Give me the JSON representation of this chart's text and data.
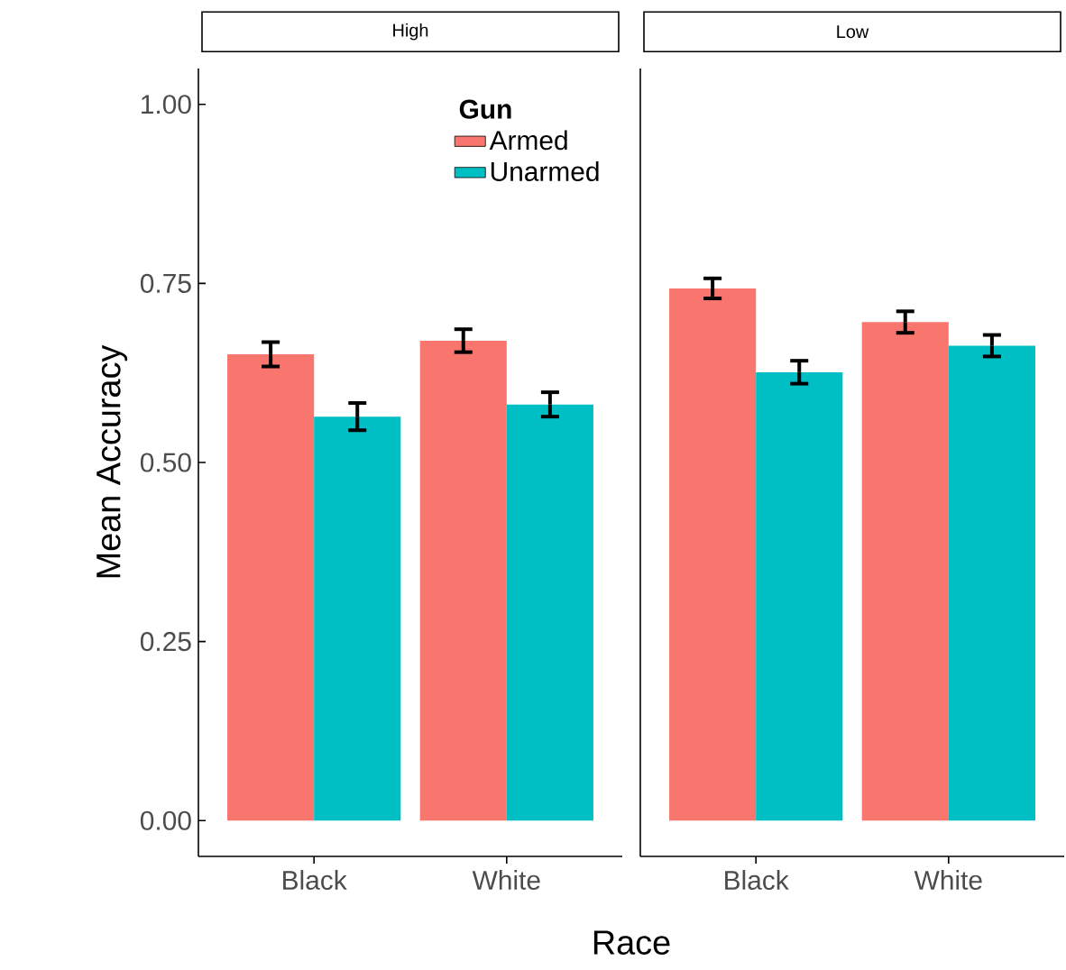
{
  "chart_data": [
    {
      "type": "bar",
      "title": "High",
      "ylabel": "Mean Accuracy",
      "xlabel": "Race",
      "categories": [
        "Black",
        "White"
      ],
      "series": [
        {
          "name": "Armed",
          "color": "#f8766d",
          "values": [
            0.651,
            0.67
          ],
          "errors": [
            0.017,
            0.016
          ]
        },
        {
          "name": "Unarmed",
          "color": "#00bfc4",
          "values": [
            0.564,
            0.581
          ],
          "errors": [
            0.019,
            0.017
          ]
        }
      ],
      "ylim": [
        -0.05,
        1.05
      ],
      "yticks": [
        {
          "value": 0,
          "label": "0.00"
        },
        {
          "value": 0.25,
          "label": "0.25"
        },
        {
          "value": 0.5,
          "label": "0.50"
        },
        {
          "value": 0.75,
          "label": "0.75"
        },
        {
          "value": 1,
          "label": "1.00"
        }
      ],
      "legend": "top right",
      "legend_title": "Gun"
    },
    {
      "type": "bar",
      "title": "Low",
      "categories": [
        "Black",
        "White"
      ],
      "series": [
        {
          "color": "#f8766d",
          "values": [
            0.743,
            0.696
          ],
          "errors": [
            0.014,
            0.015
          ]
        },
        {
          "color": "#00bfc4",
          "values": [
            0.626,
            0.663
          ],
          "errors": [
            0.016,
            0.015
          ]
        }
      ],
      "ylim": [
        -0.05,
        1.05
      ],
      "tick_labels": "x"
    }
  ]
}
